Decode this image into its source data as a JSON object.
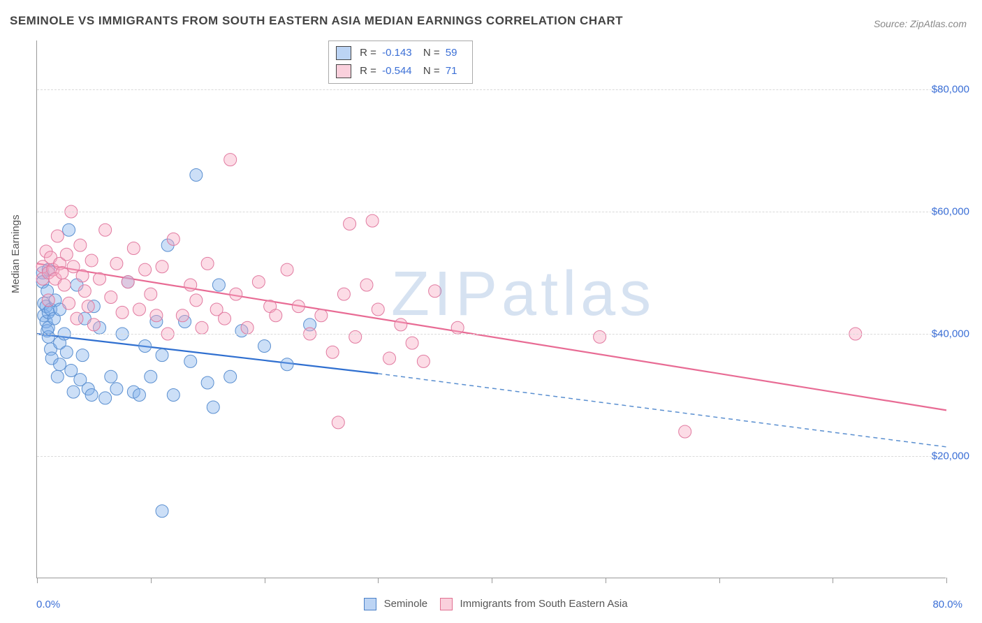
{
  "title": "SEMINOLE VS IMMIGRANTS FROM SOUTH EASTERN ASIA MEDIAN EARNINGS CORRELATION CHART",
  "source": "Source: ZipAtlas.com",
  "watermark": "ZIPatlas",
  "chart": {
    "type": "scatter",
    "background_color": "#ffffff",
    "grid_color": "#dadada",
    "border_color": "#999999",
    "marker_radius": 9,
    "x": {
      "min": 0.0,
      "max": 80.0,
      "min_label": "0.0%",
      "max_label": "80.0%",
      "tick_step": 10.0,
      "label_color": "#3b6fd6"
    },
    "y": {
      "label": "Median Earnings",
      "min": 0,
      "max": 88000,
      "ticks": [
        20000,
        40000,
        60000,
        80000
      ],
      "tick_labels": [
        "$20,000",
        "$40,000",
        "$60,000",
        "$80,000"
      ],
      "label_color": "#3b6fd6"
    },
    "series": [
      {
        "name": "Seminole",
        "color_fill": "rgba(127,175,235,0.40)",
        "color_stroke": "#5a8fd0",
        "R": "-0.143",
        "N": "59",
        "trend": {
          "x0": 0.0,
          "y0": 40000,
          "x1_solid": 30.0,
          "y1_solid": 33500,
          "x1_dash": 80.0,
          "y1_dash": 21500
        },
        "points": [
          [
            0.5,
            50000
          ],
          [
            0.5,
            48500
          ],
          [
            0.6,
            45000
          ],
          [
            0.6,
            43000
          ],
          [
            0.8,
            42000
          ],
          [
            0.8,
            44500
          ],
          [
            0.9,
            40500
          ],
          [
            0.9,
            47000
          ],
          [
            1.0,
            39500
          ],
          [
            1.0,
            43500
          ],
          [
            1.0,
            50500
          ],
          [
            1.0,
            41000
          ],
          [
            1.2,
            37500
          ],
          [
            1.2,
            44000
          ],
          [
            1.3,
            36000
          ],
          [
            1.5,
            42500
          ],
          [
            1.6,
            45500
          ],
          [
            1.8,
            33000
          ],
          [
            2.0,
            38500
          ],
          [
            2.0,
            35000
          ],
          [
            2.0,
            44000
          ],
          [
            2.4,
            40000
          ],
          [
            2.6,
            37000
          ],
          [
            2.8,
            57000
          ],
          [
            3.0,
            34000
          ],
          [
            3.2,
            30500
          ],
          [
            3.5,
            48000
          ],
          [
            3.8,
            32500
          ],
          [
            4.0,
            36500
          ],
          [
            4.2,
            42500
          ],
          [
            4.5,
            31000
          ],
          [
            4.8,
            30000
          ],
          [
            5.0,
            44500
          ],
          [
            5.5,
            41000
          ],
          [
            6.0,
            29500
          ],
          [
            6.5,
            33000
          ],
          [
            7.0,
            31000
          ],
          [
            7.5,
            40000
          ],
          [
            8.0,
            48500
          ],
          [
            8.5,
            30500
          ],
          [
            9.0,
            30000
          ],
          [
            9.5,
            38000
          ],
          [
            10.0,
            33000
          ],
          [
            10.5,
            42000
          ],
          [
            11.0,
            36500
          ],
          [
            11.5,
            54500
          ],
          [
            12.0,
            30000
          ],
          [
            13.0,
            42000
          ],
          [
            13.5,
            35500
          ],
          [
            14.0,
            66000
          ],
          [
            15.0,
            32000
          ],
          [
            15.5,
            28000
          ],
          [
            16.0,
            48000
          ],
          [
            17.0,
            33000
          ],
          [
            18.0,
            40500
          ],
          [
            20.0,
            38000
          ],
          [
            22.0,
            35000
          ],
          [
            24.0,
            41500
          ],
          [
            11.0,
            11000
          ]
        ]
      },
      {
        "name": "Immigrants from South Eastern Asia",
        "color_fill": "rgba(248,168,192,0.40)",
        "color_stroke": "#e17aa0",
        "R": "-0.544",
        "N": "71",
        "trend": {
          "x0": 0.0,
          "y0": 51500,
          "x1_solid": 80.0,
          "y1_solid": 27500,
          "x1_dash": 80.0,
          "y1_dash": 27500
        },
        "points": [
          [
            0.5,
            51000
          ],
          [
            0.5,
            49000
          ],
          [
            0.8,
            53500
          ],
          [
            1.0,
            50000
          ],
          [
            1.0,
            45500
          ],
          [
            1.2,
            52500
          ],
          [
            1.4,
            50500
          ],
          [
            1.6,
            49000
          ],
          [
            1.8,
            56000
          ],
          [
            2.0,
            51500
          ],
          [
            2.2,
            50000
          ],
          [
            2.4,
            48000
          ],
          [
            2.6,
            53000
          ],
          [
            2.8,
            45000
          ],
          [
            3.0,
            60000
          ],
          [
            3.2,
            51000
          ],
          [
            3.5,
            42500
          ],
          [
            3.8,
            54500
          ],
          [
            4.0,
            49500
          ],
          [
            4.2,
            47000
          ],
          [
            4.5,
            44500
          ],
          [
            4.8,
            52000
          ],
          [
            5.0,
            41500
          ],
          [
            5.5,
            49000
          ],
          [
            6.0,
            57000
          ],
          [
            6.5,
            46000
          ],
          [
            7.0,
            51500
          ],
          [
            7.5,
            43500
          ],
          [
            8.0,
            48500
          ],
          [
            8.5,
            54000
          ],
          [
            9.0,
            44000
          ],
          [
            9.5,
            50500
          ],
          [
            10.0,
            46500
          ],
          [
            10.5,
            43000
          ],
          [
            11.0,
            51000
          ],
          [
            11.5,
            40000
          ],
          [
            12.0,
            55500
          ],
          [
            12.8,
            43000
          ],
          [
            13.5,
            48000
          ],
          [
            14.0,
            45500
          ],
          [
            14.5,
            41000
          ],
          [
            15.0,
            51500
          ],
          [
            15.8,
            44000
          ],
          [
            16.5,
            42500
          ],
          [
            17.0,
            68500
          ],
          [
            17.5,
            46500
          ],
          [
            18.5,
            41000
          ],
          [
            19.5,
            48500
          ],
          [
            20.5,
            44500
          ],
          [
            21.0,
            43000
          ],
          [
            22.0,
            50500
          ],
          [
            23.0,
            44500
          ],
          [
            24.0,
            40000
          ],
          [
            25.0,
            43000
          ],
          [
            26.0,
            37000
          ],
          [
            27.0,
            46500
          ],
          [
            27.5,
            58000
          ],
          [
            28.0,
            39500
          ],
          [
            29.0,
            48000
          ],
          [
            30.0,
            44000
          ],
          [
            31.0,
            36000
          ],
          [
            32.0,
            41500
          ],
          [
            33.0,
            38500
          ],
          [
            34.0,
            35500
          ],
          [
            35.0,
            47000
          ],
          [
            26.5,
            25500
          ],
          [
            37.0,
            41000
          ],
          [
            49.5,
            39500
          ],
          [
            57.0,
            24000
          ],
          [
            72.0,
            40000
          ],
          [
            29.5,
            58500
          ]
        ]
      }
    ]
  },
  "bottom_legend": {
    "items": [
      {
        "label": "Seminole",
        "class": "legend-blue"
      },
      {
        "label": "Immigrants from South Eastern Asia",
        "class": "legend-pink"
      }
    ]
  }
}
